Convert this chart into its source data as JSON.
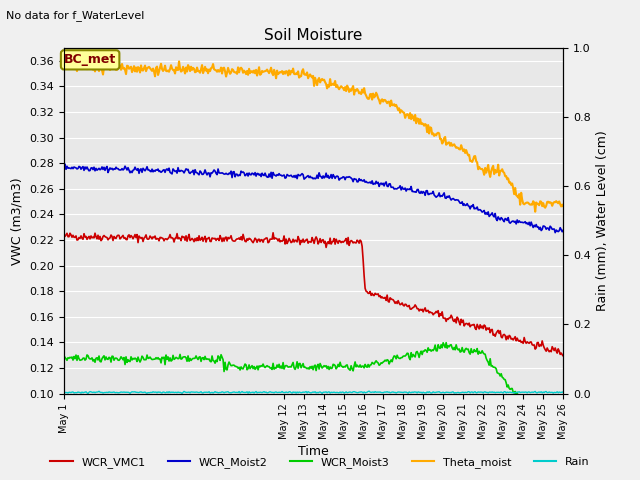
{
  "title": "Soil Moisture",
  "top_left_note": "No data for f_WaterLevel",
  "ylabel_left": "VWC (m3/m3)",
  "ylabel_right": "Rain (mm), Water Level (cm)",
  "xlabel": "Time",
  "annotation_box": "BC_met",
  "xlim": [
    1,
    26
  ],
  "ylim_left": [
    0.1,
    0.37
  ],
  "ylim_right": [
    0.0,
    1.0
  ],
  "yticks_left": [
    0.1,
    0.12,
    0.14,
    0.16,
    0.18,
    0.2,
    0.22,
    0.24,
    0.26,
    0.28,
    0.3,
    0.32,
    0.34,
    0.36
  ],
  "yticks_right": [
    0.0,
    0.2,
    0.4,
    0.6,
    0.8,
    1.0
  ],
  "xtick_positions": [
    1,
    12,
    13,
    14,
    15,
    16,
    17,
    18,
    19,
    20,
    21,
    22,
    23,
    24,
    25,
    26
  ],
  "xtick_labels": [
    "May 1",
    "May 12",
    "May 13",
    "May 14",
    "May 15",
    "May 16",
    "May 17",
    "May 18",
    "May 19",
    "May 20",
    "May 21",
    "May 22",
    "May 23",
    "May 24",
    "May 25",
    "May 26"
  ],
  "fig_bg": "#f0f0f0",
  "plot_bg": "#e8e8e8",
  "grid_color": "#ffffff",
  "series": {
    "WCR_VMC1": {
      "color": "#cc0000",
      "lw": 1.2
    },
    "WCR_Moist2": {
      "color": "#0000cc",
      "lw": 1.2
    },
    "WCR_Moist3": {
      "color": "#00cc00",
      "lw": 1.2
    },
    "Theta_moist": {
      "color": "#ffaa00",
      "lw": 1.5
    },
    "Rain": {
      "color": "#00cccc",
      "lw": 1.0
    }
  },
  "title_fontsize": 11,
  "axis_label_fontsize": 9,
  "tick_fontsize": 8,
  "note_fontsize": 8,
  "legend_fontsize": 8,
  "annot_fontsize": 9
}
